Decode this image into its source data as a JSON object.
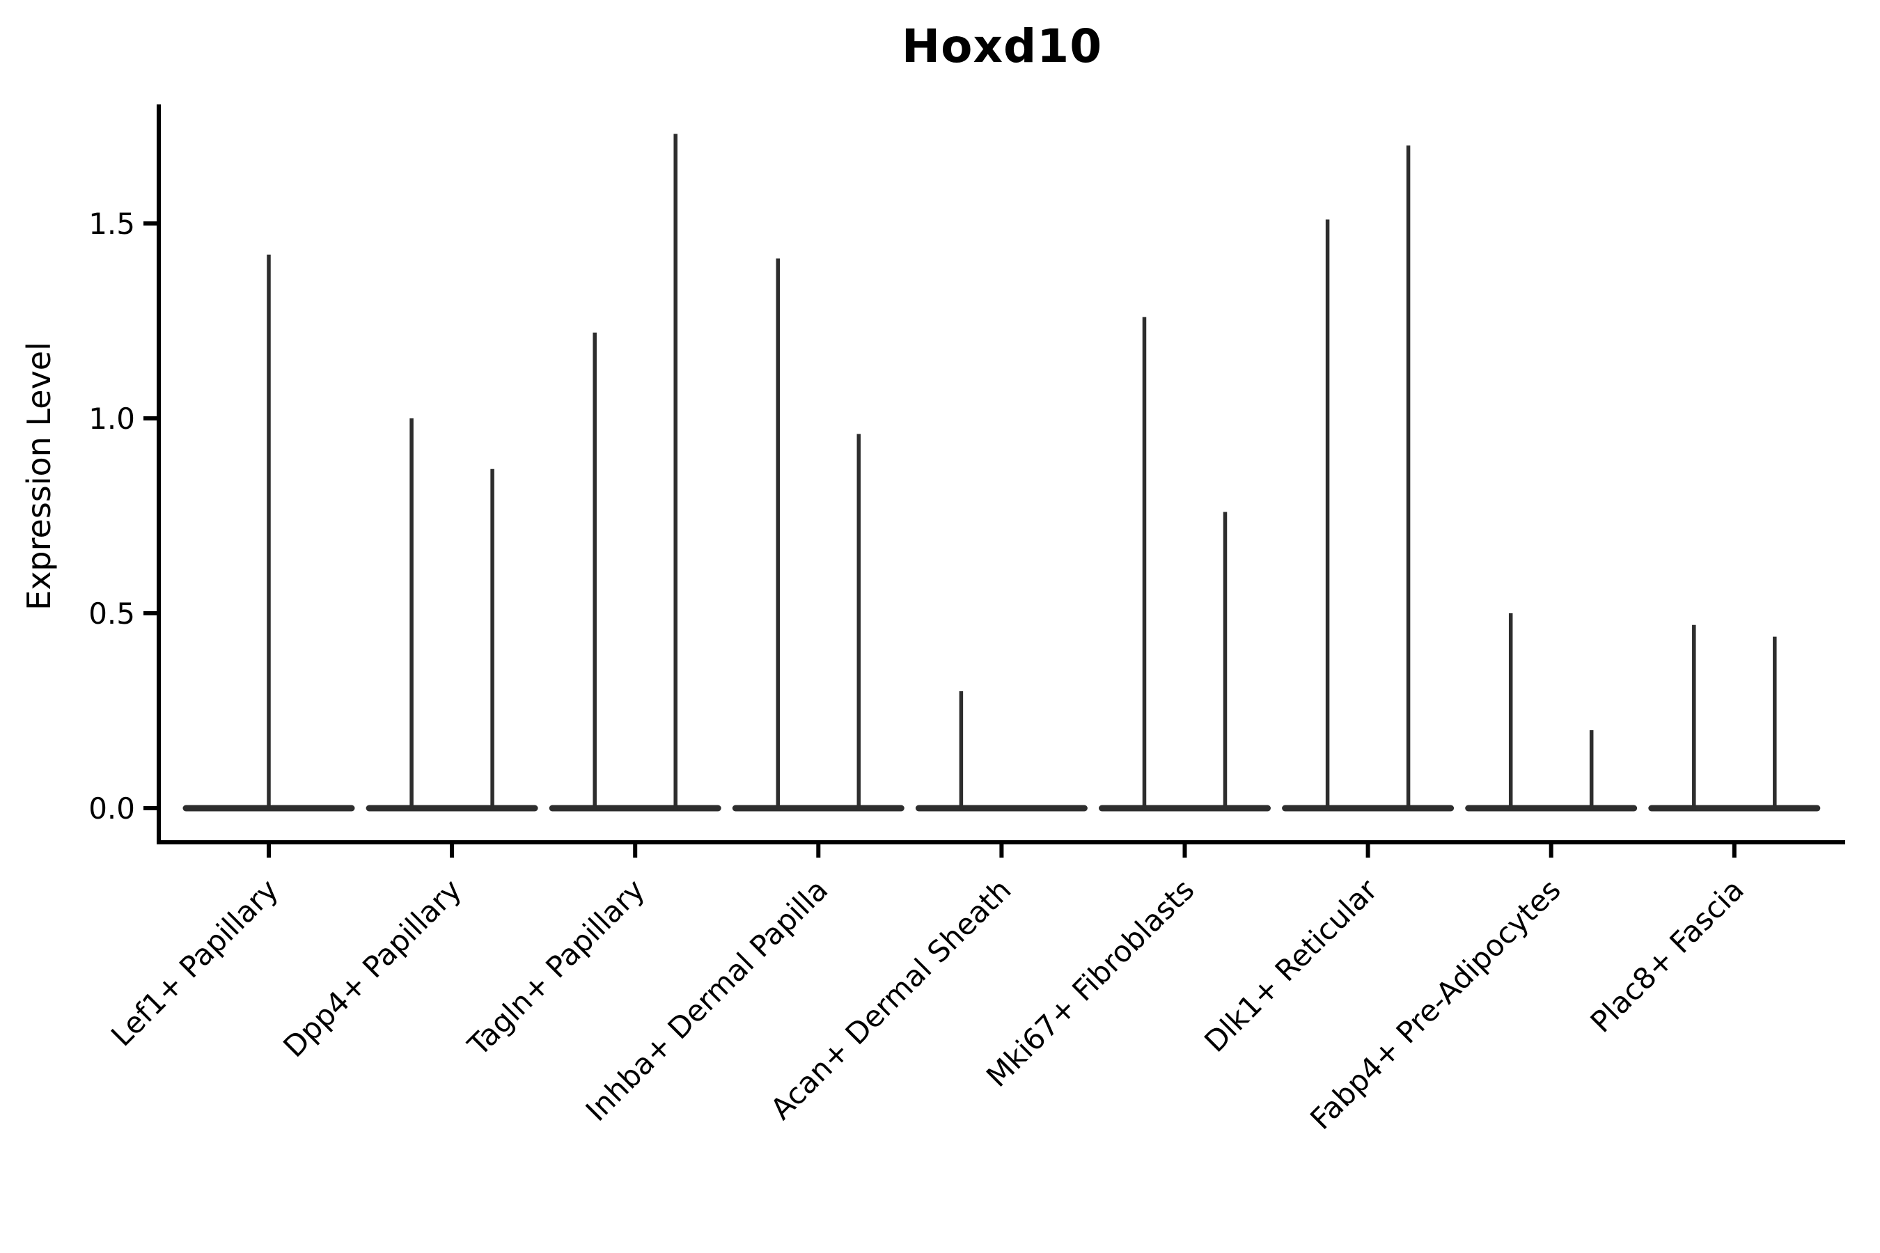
{
  "chart_data": {
    "type": "violin",
    "title": "Hoxd10",
    "ylabel": "Expression Level",
    "xlabel": "",
    "yticks": [
      "0.0",
      "0.5",
      "1.0",
      "1.5"
    ],
    "ylim": [
      0,
      1.81
    ],
    "grid": false,
    "legend": "none",
    "violin_color": "#2d2d2d",
    "axis_color": "#000000",
    "background_color": "#ffffff",
    "x_label_rotation_deg": 45,
    "categories": [
      {
        "label": "Lef1+ Papillary",
        "violins": [
          {
            "pos": "center",
            "max_expression": 1.42
          }
        ]
      },
      {
        "label": "Dpp4+ Papillary",
        "violins": [
          {
            "pos": "left",
            "max_expression": 1.0
          },
          {
            "pos": "right",
            "max_expression": 0.87
          }
        ]
      },
      {
        "label": "Tagln+ Papillary",
        "violins": [
          {
            "pos": "left",
            "max_expression": 1.22
          },
          {
            "pos": "right",
            "max_expression": 1.73
          }
        ]
      },
      {
        "label": "Inhba+ Dermal Papilla",
        "violins": [
          {
            "pos": "left",
            "max_expression": 1.41
          },
          {
            "pos": "right",
            "max_expression": 0.96
          }
        ]
      },
      {
        "label": "Acan+ Dermal Sheath",
        "violins": [
          {
            "pos": "left",
            "max_expression": 0.3
          },
          {
            "pos": "right",
            "max_expression": 0.0
          }
        ]
      },
      {
        "label": "Mki67+ Fibroblasts",
        "violins": [
          {
            "pos": "left",
            "max_expression": 1.26
          },
          {
            "pos": "right",
            "max_expression": 0.76
          }
        ]
      },
      {
        "label": "Dlk1+ Reticular",
        "violins": [
          {
            "pos": "left",
            "max_expression": 1.51
          },
          {
            "pos": "right",
            "max_expression": 1.7
          }
        ]
      },
      {
        "label": "Fabp4+ Pre-Adipocytes",
        "violins": [
          {
            "pos": "left",
            "max_expression": 0.5
          },
          {
            "pos": "right",
            "max_expression": 0.2
          }
        ]
      },
      {
        "label": "Plac8+ Fascia",
        "violins": [
          {
            "pos": "left",
            "max_expression": 0.47
          },
          {
            "pos": "right",
            "max_expression": 0.44
          }
        ]
      }
    ]
  }
}
